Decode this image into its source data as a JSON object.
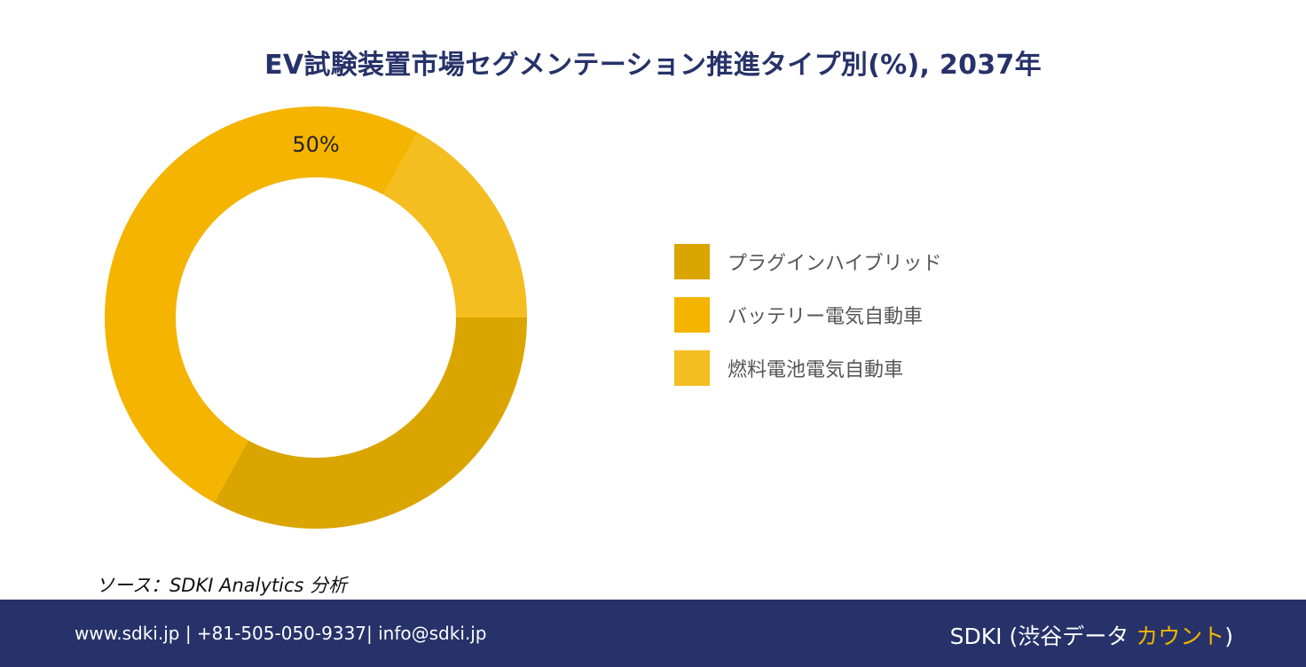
{
  "chart_data": {
    "type": "pie",
    "title": "EV試験装置市場セグメンテーション推進タイプ別(%), 2037年",
    "categories": [
      "プラグインハイブリッド",
      "バッテリー電気自動車",
      "燃料電池電気自動車"
    ],
    "values": [
      33,
      50,
      17
    ],
    "colors": [
      "#dba500",
      "#f4b400",
      "#f4bd20"
    ],
    "data_labels": [
      "",
      "50%",
      ""
    ],
    "donut": true,
    "legend": "right"
  },
  "source": "ソース：SDKI Analytics 分析",
  "footer": {
    "contact": "www.sdki.jp | +81-505-050-9337| info@sdki.jp",
    "brand_prefix": "SDKI (渋谷データ ",
    "brand_accent": "カウント",
    "brand_suffix": ")"
  }
}
